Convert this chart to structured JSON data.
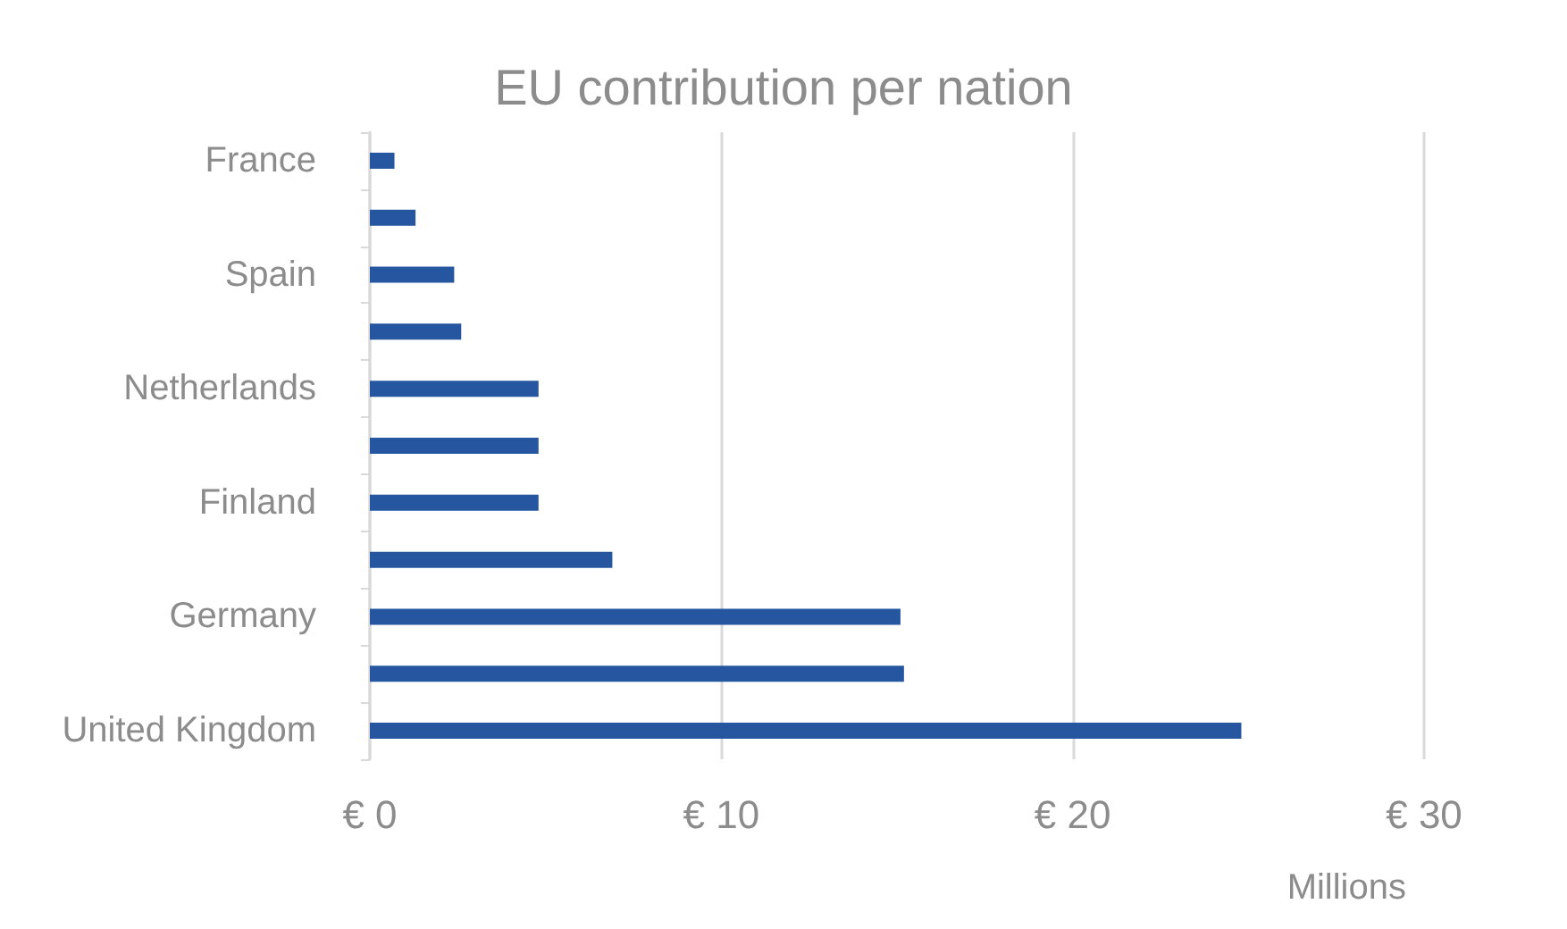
{
  "chart_data": {
    "type": "bar",
    "orientation": "horizontal",
    "title": "EU contribution per nation",
    "xlabel": "Millions",
    "categories": [
      "France",
      null,
      "Spain",
      null,
      "Netherlands",
      null,
      "Finland",
      null,
      "Germany",
      null,
      "United Kingdom"
    ],
    "values": [
      0.7,
      1.3,
      2.4,
      2.6,
      4.8,
      4.8,
      4.8,
      6.9,
      15.1,
      15.2,
      24.8
    ],
    "color": "#2656a0",
    "xlim": [
      0,
      30
    ],
    "xticks": [
      {
        "value": 0,
        "label": "€ 0"
      },
      {
        "value": 10,
        "label": "€ 10"
      },
      {
        "value": 20,
        "label": "€ 20"
      },
      {
        "value": 30,
        "label": "€ 30"
      }
    ],
    "grid": "x"
  }
}
